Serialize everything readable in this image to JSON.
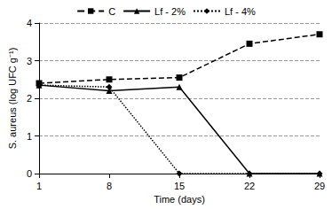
{
  "chart_data": {
    "type": "line",
    "x_label": "Time (days)",
    "y_label": "S. aureus (log UFC g⁻¹)",
    "categories": [
      "1",
      "8",
      "15",
      "22",
      "29"
    ],
    "series": [
      {
        "name": "C",
        "color": "#000000",
        "marker": "square",
        "line_style": "dashed",
        "values": [
          2.4,
          2.5,
          2.55,
          3.45,
          3.7
        ]
      },
      {
        "name": "Lf - 2%",
        "color": "#000000",
        "marker": "triangle",
        "line_style": "solid",
        "values": [
          2.35,
          2.2,
          2.3,
          0,
          0
        ]
      },
      {
        "name": "Lf - 4%",
        "color": "#000000",
        "marker": "diamond",
        "line_style": "dotted",
        "values": [
          2.35,
          2.3,
          0,
          0,
          0
        ]
      }
    ],
    "ylim": [
      0,
      4
    ],
    "yticks": [
      0,
      1,
      2,
      3,
      4
    ],
    "grid": true,
    "legend": "top"
  }
}
